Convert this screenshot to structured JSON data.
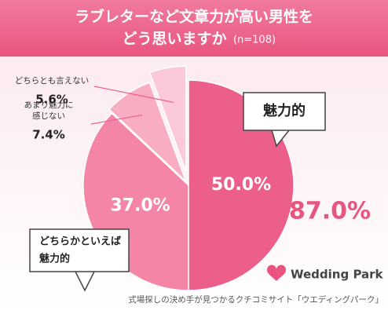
{
  "chart_data": {
    "type": "pie",
    "title": [
      "ラブレターなど文章力が高い男性を",
      "どう思いますか"
    ],
    "subtitle": "(n=108)",
    "categories": [
      [
        "魅力的"
      ],
      [
        "どちらかといえば",
        "魅力的"
      ],
      [
        "あまり魅力に",
        "感じない"
      ],
      [
        "どちらとも言えない"
      ]
    ],
    "values": [
      50.0,
      37.0,
      7.4,
      5.6
    ],
    "value_labels": [
      "50.0%",
      "37.0%",
      "7.4%",
      "5.6%"
    ],
    "colors": [
      "#ec5f8b",
      "#f585a6",
      "#f8adc3",
      "#fbc9d7"
    ],
    "annotation": {
      "value": 87.0,
      "label": "87.0%"
    },
    "brand": "Wedding Park",
    "footer": "式場探しの決め手が見つかるクチコミサイト「ウエディングパーク」"
  }
}
